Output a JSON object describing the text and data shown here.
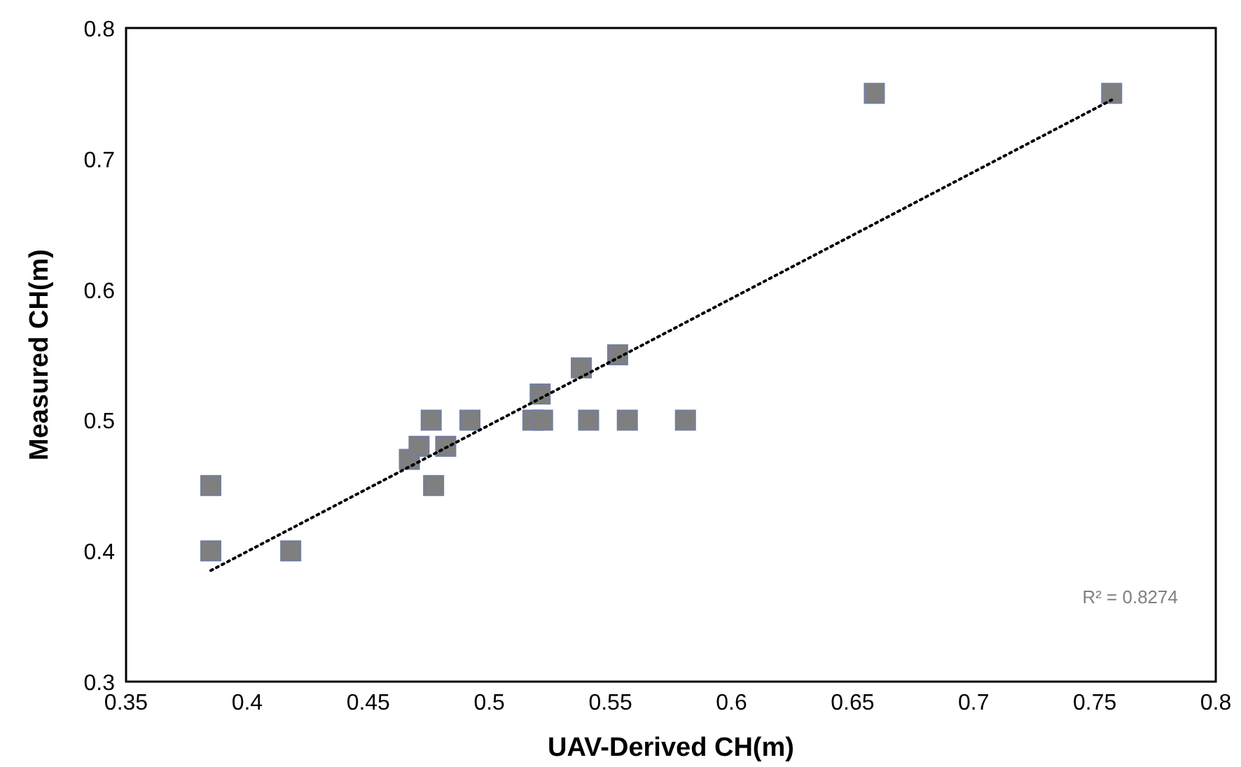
{
  "chart_data": {
    "type": "scatter",
    "xlabel": "UAV-Derived CH(m)",
    "ylabel": "Measured CH(m)",
    "xlim": [
      0.35,
      0.8
    ],
    "ylim": [
      0.3,
      0.8
    ],
    "xticks": [
      0.35,
      0.4,
      0.45,
      0.5,
      0.55,
      0.6,
      0.65,
      0.7,
      0.75,
      0.8
    ],
    "yticks": [
      0.3,
      0.4,
      0.5,
      0.6,
      0.7,
      0.8
    ],
    "grid": false,
    "annotations": [
      "R² = 0.8274"
    ],
    "series": [
      {
        "marker": "square",
        "color": "#7f7f7f",
        "x": [
          0.385,
          0.385,
          0.418,
          0.467,
          0.471,
          0.476,
          0.477,
          0.482,
          0.492,
          0.518,
          0.522,
          0.521,
          0.538,
          0.541,
          0.553,
          0.557,
          0.581,
          0.659,
          0.757
        ],
        "values": [
          0.45,
          0.4,
          0.4,
          0.47,
          0.48,
          0.5,
          0.45,
          0.48,
          0.5,
          0.5,
          0.5,
          0.52,
          0.54,
          0.5,
          0.55,
          0.5,
          0.5,
          0.75,
          0.75
        ]
      },
      {
        "type": "line",
        "color": "#000000",
        "line_style": "dotted",
        "x": [
          0.385,
          0.757
        ],
        "values": [
          0.385,
          0.745
        ]
      }
    ]
  }
}
